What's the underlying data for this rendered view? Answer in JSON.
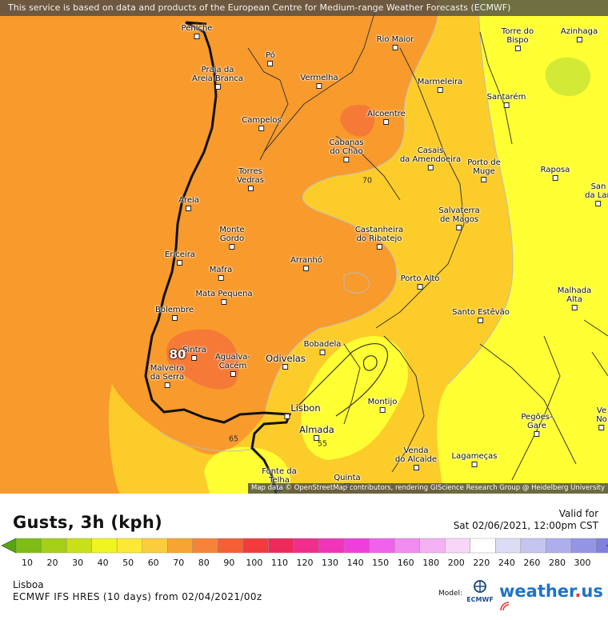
{
  "map": {
    "attribution_top": "This service is based on data and products of the European Centre for Medium-range Weather Forecasts (ECMWF)",
    "attribution_bottom": "Map data © OpenStreetMap contributors, rendering GIScience Research Group @ Heidelberg University",
    "colors": {
      "band_50_60": "#ffff33",
      "band_60_70": "#fccc2a",
      "band_70_80": "#f89a2c",
      "band_80_90": "#f57a38",
      "band_40_50": "#d2ea36",
      "border": "#111111",
      "roads": "#3a3a3a"
    },
    "places": [
      {
        "name": "Peniche",
        "label": "Peniche"
      },
      {
        "name": "rio-maior",
        "label": "Rio Maior"
      },
      {
        "name": "torre-do-bispo",
        "label": "Torre do\nBispo"
      },
      {
        "name": "azinhaga",
        "label": "Azinhaga"
      },
      {
        "name": "po",
        "label": "Pó"
      },
      {
        "name": "praia-da-areia-branca",
        "label": "Praia da\nAreia Branca"
      },
      {
        "name": "vermelha",
        "label": "Vermelha"
      },
      {
        "name": "marmeleira",
        "label": "Marmeleira"
      },
      {
        "name": "santarem",
        "label": "Santarém"
      },
      {
        "name": "alcoentre",
        "label": "Alcoentre"
      },
      {
        "name": "campelos",
        "label": "Campelos"
      },
      {
        "name": "cabanas-do-chao",
        "label": "Cabanas\ndo Chão"
      },
      {
        "name": "casais-da-amendoeira",
        "label": "Casais\nda Amendoeira"
      },
      {
        "name": "porto-de-muge",
        "label": "Porto de\nMuge"
      },
      {
        "name": "raposa",
        "label": "Raposa"
      },
      {
        "name": "san-da-lan",
        "label": "San\nda Lan"
      },
      {
        "name": "torres-vedras",
        "label": "Torres\nVedras"
      },
      {
        "name": "areia",
        "label": "Areia"
      },
      {
        "name": "salvaterra-de-magos",
        "label": "Salvaterra\nde Magos"
      },
      {
        "name": "castanheira-do-ribatejo",
        "label": "Castanheira\ndo Ribatejo"
      },
      {
        "name": "monte-gordo",
        "label": "Monte\nGordo"
      },
      {
        "name": "ericeira",
        "label": "Ericeira"
      },
      {
        "name": "arranho",
        "label": "Arranhó"
      },
      {
        "name": "mafra",
        "label": "Mafra"
      },
      {
        "name": "porto-alto",
        "label": "Porto Alto"
      },
      {
        "name": "malhada-alta",
        "label": "Malhada\nAlta"
      },
      {
        "name": "mata-pequena",
        "label": "Mata Pequena"
      },
      {
        "name": "bolembre",
        "label": "Bolembre"
      },
      {
        "name": "santo-estevao",
        "label": "Santo Estêvão"
      },
      {
        "name": "sintra",
        "label": "Sintra"
      },
      {
        "name": "bobadela",
        "label": "Bobadela"
      },
      {
        "name": "agualva-cacem",
        "label": "Agualva-\nCacém"
      },
      {
        "name": "odivelas",
        "label": "Odivelas"
      },
      {
        "name": "malveira-da-serra",
        "label": "Malveira\nda Serra"
      },
      {
        "name": "montijo",
        "label": "Montijo"
      },
      {
        "name": "lisbon",
        "label": "Lisbon"
      },
      {
        "name": "pegoes-gare",
        "label": "Pegões-\nGare"
      },
      {
        "name": "ve-no",
        "label": "Ve\nNo"
      },
      {
        "name": "almada",
        "label": "Almada"
      },
      {
        "name": "venda-do-alcaide",
        "label": "Venda\ndo Alcaide"
      },
      {
        "name": "lagameças",
        "label": "Lagameças"
      },
      {
        "name": "fonte-da-telha",
        "label": "Fonte da\nTelha"
      },
      {
        "name": "quinta",
        "label": "Quinta"
      }
    ],
    "contour_labels": {
      "c70": "70",
      "c65": "65",
      "c55": "55",
      "peak": "80"
    }
  },
  "legend": {
    "title": "Gusts, 3h (kph)",
    "valid_label": "Valid for",
    "valid_time": "Sat 02/06/2021, 12:00pm CST",
    "ticks": [
      "10",
      "20",
      "30",
      "40",
      "50",
      "60",
      "70",
      "80",
      "90",
      "100",
      "110",
      "120",
      "130",
      "140",
      "150",
      "160",
      "180",
      "200",
      "220",
      "240",
      "260",
      "280",
      "300"
    ],
    "colors": [
      "#56a515",
      "#7dbd16",
      "#a5cf18",
      "#c9e01a",
      "#f0f420",
      "#fde836",
      "#fbcc3c",
      "#f8a534",
      "#f6833a",
      "#f45f36",
      "#f23b3d",
      "#ee2a5a",
      "#ef2e8d",
      "#ef36b8",
      "#ee3fdc",
      "#f062ec",
      "#f28cf0",
      "#f5b2f3",
      "#f8d6f7",
      "#ffffff",
      "#dcdcf5",
      "#c5c5f0",
      "#aeaeec",
      "#9595e6",
      "#8080e0"
    ],
    "location": "Lisboa",
    "model_run": "ECMWF IFS HRES (10 days) from 02/04/2021/00z",
    "model_label": "Model:",
    "ecmwf_logo_text": "ECMWF",
    "brand_main": "weather",
    "brand_dot": ".",
    "brand_tld": "us"
  }
}
